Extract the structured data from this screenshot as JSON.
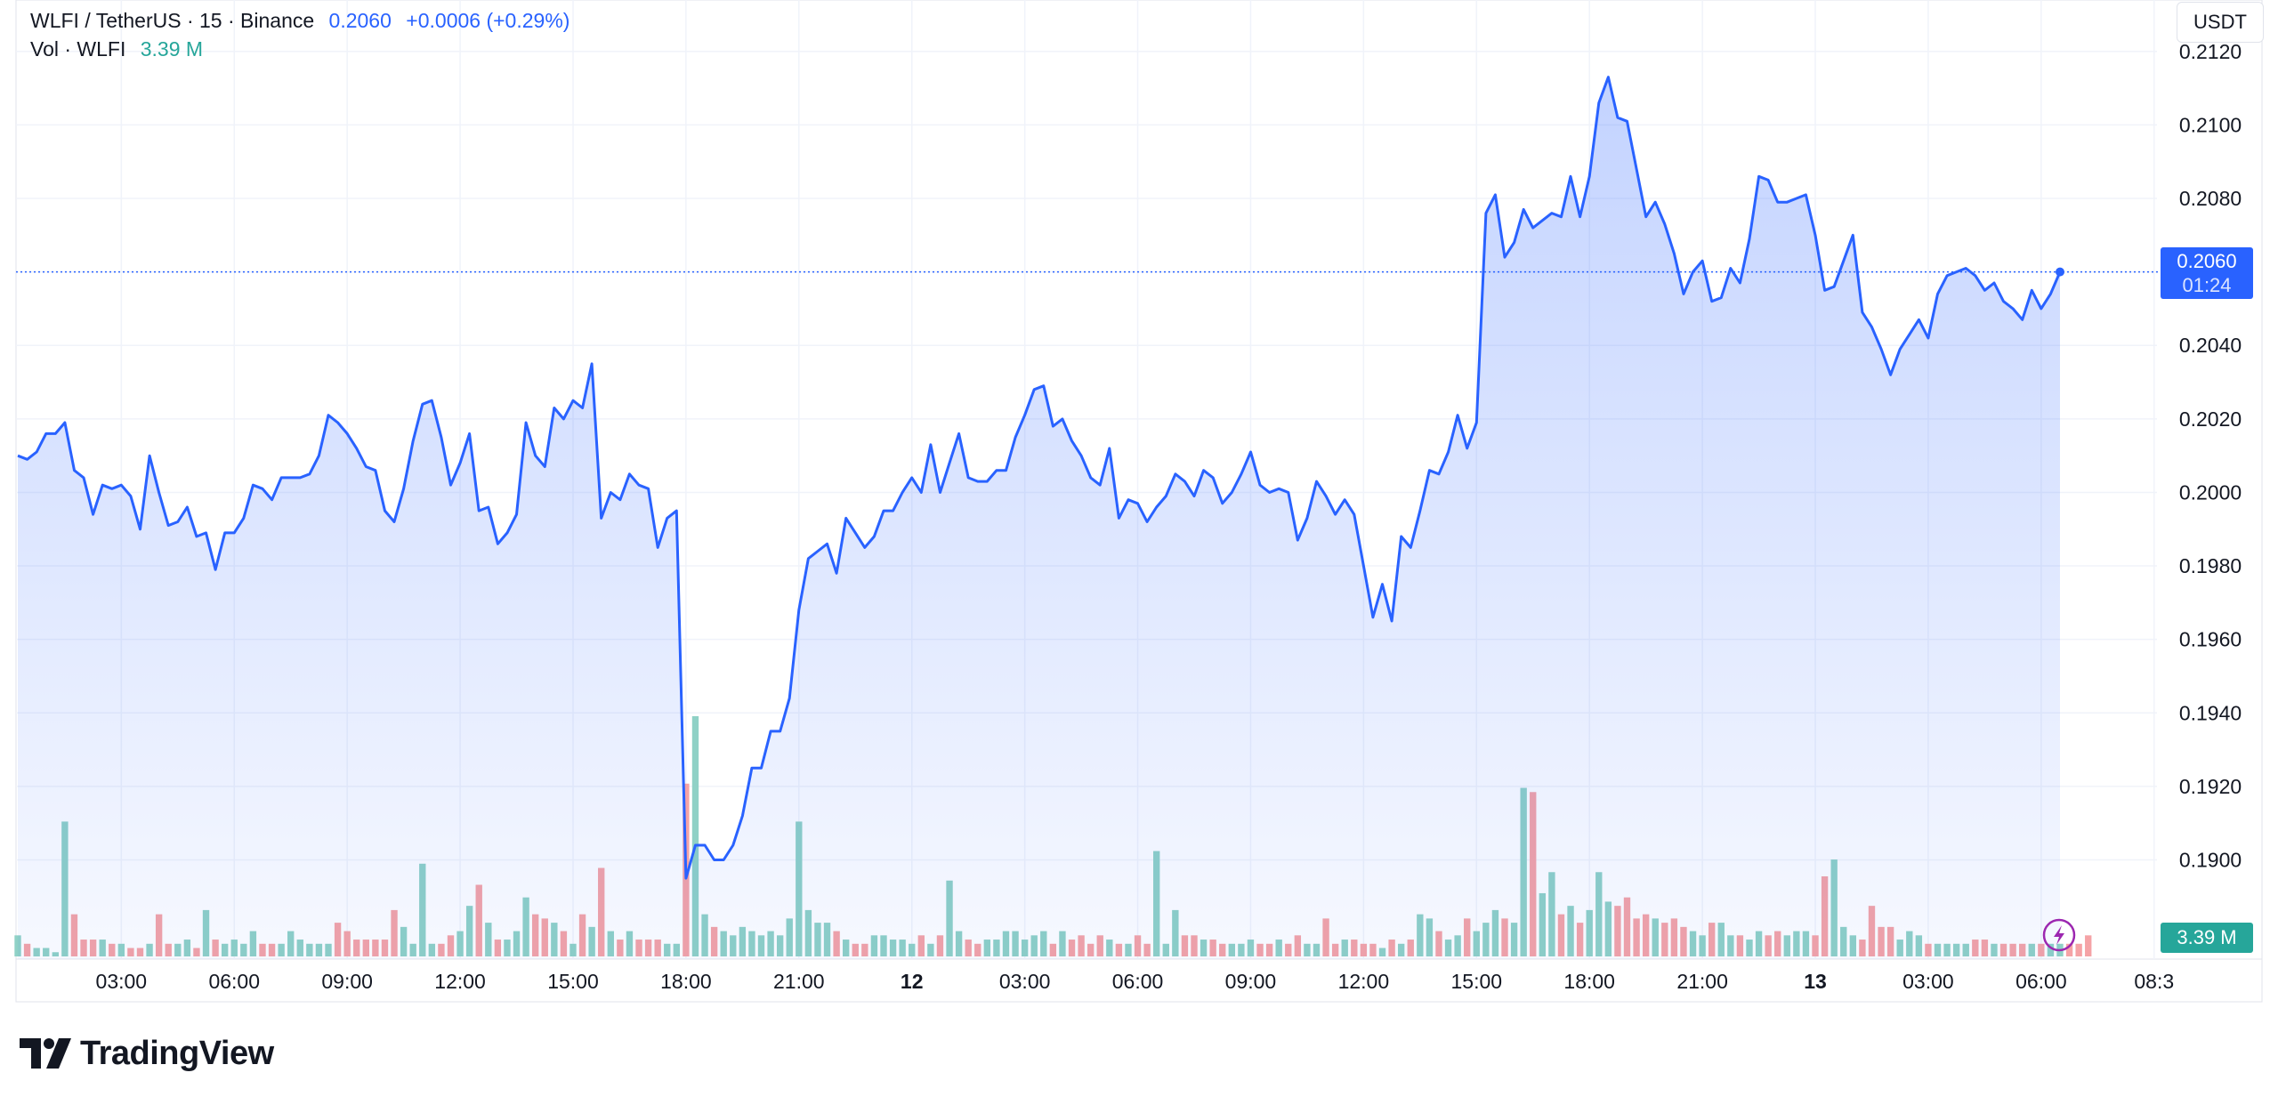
{
  "header": {
    "pair": "WLFI / TetherUS · 15 · Binance",
    "price": "0.2060",
    "change": "+0.0006 (+0.29%)",
    "vol_label": "Vol · WLFI",
    "vol_value": "3.39 M"
  },
  "currency_button": "USDT",
  "last_price_label": "0.2060",
  "countdown": "01:24",
  "volume_badge": "3.39 M",
  "logo_text": "TradingView",
  "colors": {
    "line": "#2962ff",
    "up_volume": "#8fd1c6",
    "down_volume": "#f5a3a6",
    "price_badge": "#2962ff",
    "volume_badge": "#26a69a",
    "accent_text": "#2962ff",
    "volume_text": "#26a69a"
  },
  "chart_data": {
    "type": "area",
    "title": "WLFI / TetherUS",
    "interval": "15",
    "ylim": [
      0.1873,
      0.2134
    ],
    "y_ticks": [
      "0.2120",
      "0.2100",
      "0.2080",
      "0.2060",
      "0.2040",
      "0.2020",
      "0.2000",
      "0.1980",
      "0.1960",
      "0.1940",
      "0.1920",
      "0.1900"
    ],
    "x_ticks": [
      "03:00",
      "06:00",
      "09:00",
      "12:00",
      "15:00",
      "18:00",
      "21:00",
      "12",
      "03:00",
      "06:00",
      "09:00",
      "12:00",
      "15:00",
      "18:00",
      "21:00",
      "13",
      "03:00",
      "06:00",
      "08:3"
    ],
    "x_ticks_bold": [
      "12",
      "13"
    ],
    "grid": true,
    "series": [
      {
        "values": [
          0.201,
          0.2009,
          0.2011,
          0.2016,
          0.2016,
          0.2019,
          0.2006,
          0.2004,
          0.1994,
          0.2002,
          0.2001,
          0.2002,
          0.1999,
          0.199,
          0.201,
          0.2,
          0.1991,
          0.1992,
          0.1996,
          0.1988,
          0.1989,
          0.1979,
          0.1989,
          0.1989,
          0.1993,
          0.2002,
          0.2001,
          0.1998,
          0.2004,
          0.2004,
          0.2004,
          0.2005,
          0.201,
          0.2021,
          0.2019,
          0.2016,
          0.2012,
          0.2007,
          0.2006,
          0.1995,
          0.1992,
          0.2001,
          0.2014,
          0.2024,
          0.2025,
          0.2015,
          0.2002,
          0.2008,
          0.2016,
          0.1995,
          0.1996,
          0.1986,
          0.1989,
          0.1994,
          0.2019,
          0.201,
          0.2007,
          0.2023,
          0.202,
          0.2025,
          0.2023,
          0.2035,
          0.1993,
          0.2,
          0.1998,
          0.2005,
          0.2002,
          0.2001,
          0.1985,
          0.1993,
          0.1995,
          0.1895,
          0.1904,
          0.1904,
          0.19,
          0.19,
          0.1904,
          0.1912,
          0.1925,
          0.1925,
          0.1935,
          0.1935,
          0.1944,
          0.1968,
          0.1982,
          0.1984,
          0.1986,
          0.1978,
          0.1993,
          0.1989,
          0.1985,
          0.1988,
          0.1995,
          0.1995,
          0.2,
          0.2004,
          0.2,
          0.2013,
          0.2,
          0.2008,
          0.2016,
          0.2004,
          0.2003,
          0.2003,
          0.2006,
          0.2006,
          0.2015,
          0.2021,
          0.2028,
          0.2029,
          0.2018,
          0.202,
          0.2014,
          0.201,
          0.2004,
          0.2002,
          0.2012,
          0.1993,
          0.1998,
          0.1997,
          0.1992,
          0.1996,
          0.1999,
          0.2005,
          0.2003,
          0.1999,
          0.2006,
          0.2004,
          0.1997,
          0.2,
          0.2005,
          0.2011,
          0.2002,
          0.2,
          0.2001,
          0.2,
          0.1987,
          0.1993,
          0.2003,
          0.1999,
          0.1994,
          0.1998,
          0.1994,
          0.198,
          0.1966,
          0.1975,
          0.1965,
          0.1988,
          0.1985,
          0.1995,
          0.2006,
          0.2005,
          0.2011,
          0.2021,
          0.2012,
          0.2019,
          0.2076,
          0.2081,
          0.2064,
          0.2068,
          0.2077,
          0.2072,
          0.2074,
          0.2076,
          0.2075,
          0.2086,
          0.2075,
          0.2086,
          0.2106,
          0.2113,
          0.2102,
          0.2101,
          0.2088,
          0.2075,
          0.2079,
          0.2073,
          0.2065,
          0.2054,
          0.206,
          0.2063,
          0.2052,
          0.2053,
          0.2061,
          0.2057,
          0.2069,
          0.2086,
          0.2085,
          0.2079,
          0.2079,
          0.208,
          0.2081,
          0.207,
          0.2055,
          0.2056,
          0.2063,
          0.207,
          0.2049,
          0.2045,
          0.2039,
          0.2032,
          0.2039,
          0.2043,
          0.2047,
          0.2042,
          0.2054,
          0.2059,
          0.206,
          0.2061,
          0.2059,
          0.2055,
          0.2057,
          0.2052,
          0.205,
          0.2047,
          0.2055,
          0.205,
          0.2054,
          0.206
        ]
      },
      {
        "name": "Vol · WLFI",
        "values": [
          5,
          3,
          2,
          2,
          1,
          32,
          10,
          4,
          4,
          4,
          3,
          3,
          2,
          2,
          3,
          10,
          3,
          3,
          4,
          2,
          11,
          4,
          3,
          4,
          3,
          6,
          3,
          3,
          3,
          6,
          4,
          3,
          3,
          3,
          8,
          6,
          4,
          4,
          4,
          4,
          11,
          7,
          3,
          22,
          3,
          3,
          5,
          6,
          12,
          17,
          8,
          4,
          4,
          6,
          14,
          10,
          9,
          8,
          6,
          3,
          10,
          7,
          21,
          6,
          4,
          6,
          4,
          4,
          4,
          3,
          3,
          41,
          57,
          10,
          7,
          6,
          5,
          7,
          6,
          5,
          6,
          5,
          9,
          32,
          11,
          8,
          8,
          6,
          4,
          3,
          3,
          5,
          5,
          4,
          4,
          3,
          5,
          3,
          5,
          18,
          6,
          4,
          3,
          4,
          4,
          6,
          6,
          4,
          5,
          6,
          3,
          6,
          4,
          5,
          3,
          5,
          4,
          3,
          3,
          5,
          3,
          25,
          3,
          11,
          5,
          5,
          4,
          4,
          3,
          3,
          3,
          4,
          3,
          3,
          4,
          3,
          5,
          3,
          3,
          9,
          3,
          4,
          4,
          3,
          3,
          2,
          4,
          3,
          4,
          10,
          9,
          6,
          4,
          5,
          9,
          6,
          8,
          11,
          9,
          8,
          40,
          39,
          15,
          20,
          10,
          12,
          8,
          11,
          20,
          13,
          12,
          14,
          9,
          10,
          9,
          8,
          9,
          7,
          6,
          5,
          8,
          8,
          5,
          5,
          4,
          6,
          5,
          6,
          5,
          6,
          6,
          5,
          19,
          23,
          7,
          5,
          4,
          12,
          7,
          7,
          4,
          6,
          5,
          3,
          3,
          3,
          3,
          3,
          4,
          4,
          3,
          3,
          3,
          3,
          3,
          3,
          3,
          3,
          3,
          3,
          5
        ]
      }
    ]
  }
}
